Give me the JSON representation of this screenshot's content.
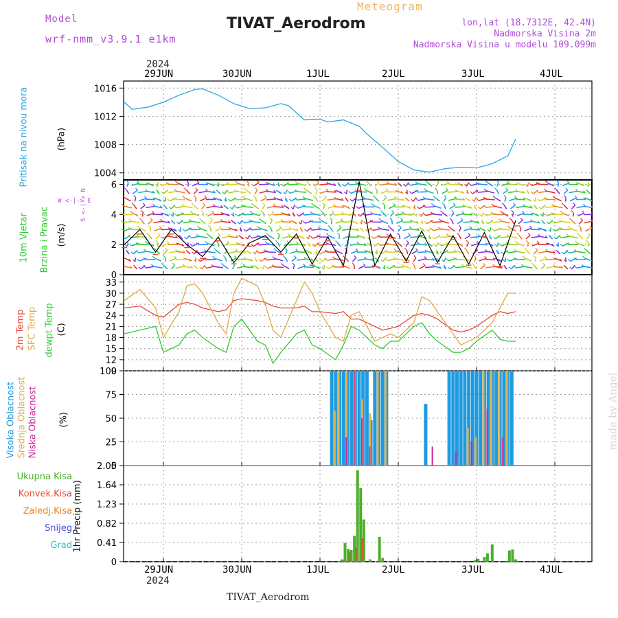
{
  "header": {
    "model_label": "Model",
    "model_name": "wrf-nmm_v3.9.1 e1km",
    "title": "TIVAT_Aerodrom",
    "meteogram": "Meteogram",
    "lonlat": "lon,lat (18.7312E, 42.4N)",
    "elevation": "Nadmorska Visina 2m",
    "model_elevation": "Nadmorska Visina u modelu 109.099m"
  },
  "footer": {
    "station": "TIVAT_Aerodrom",
    "made_by": "made by Angel"
  },
  "axis": {
    "year_top": "2024",
    "year_bottom": "2024",
    "date_labels": [
      "29JUN",
      "30JUN",
      "1JUL",
      "2JUL",
      "3JUL",
      "4JUL"
    ]
  },
  "panels": {
    "pressure": {
      "label": "Pritisak na nivou mora",
      "unit": "(hPa)"
    },
    "wind": {
      "label1": "10m Vjetar",
      "label2": "Brzina i Pravac",
      "unit": "(m/s)",
      "compass": "W <-|-> E",
      "compass_ns": "S <-|-> N"
    },
    "temp": {
      "label1": "2m Temp",
      "label2": "SFC Temp",
      "label3": "dewpt Temp",
      "unit": "(C)"
    },
    "cloud": {
      "label1": "Visoka Oblacnost",
      "label2": "Srednja Oblacnost",
      "label3": "Niska Oblacnost",
      "unit": "(%)"
    },
    "precip": {
      "unit": "1hr Precip (mm)",
      "legend": [
        "Ukupna Kisa",
        "Konvek.Kisa",
        "Zaledj.Kisa",
        "Snijeg",
        "Grad"
      ]
    }
  },
  "colors": {
    "pressure": "#2aa6e0",
    "temp2m": "#e84a3a",
    "sfc": "#e0a840",
    "dewpt": "#2ecc2e",
    "high_cloud": "#1e9be0",
    "mid_cloud": "#e0b050",
    "low_cloud": "#d0229a",
    "total_rain": "#4caf2a",
    "conv_rain": "#e84a3a",
    "frz_rain": "#f08020",
    "snow": "#4a4ae0",
    "hail": "#30c0c0",
    "purple": "#b04ad8",
    "grid": "#999999"
  },
  "chart_data": [
    {
      "type": "line",
      "title": "Pritisak na nivou mora",
      "ylabel": "(hPa)",
      "ylim": [
        1003,
        1017
      ],
      "yticks": [
        1004,
        1008,
        1012,
        1016
      ],
      "x": [
        -0.5,
        -0.4,
        -0.2,
        0,
        0.2,
        0.4,
        0.5,
        0.7,
        0.9,
        1.1,
        1.3,
        1.5,
        1.6,
        1.8,
        2.0,
        2.1,
        2.3,
        2.5,
        2.6,
        2.8,
        3.0,
        3.2,
        3.4,
        3.6,
        3.8,
        4.0,
        4.2,
        4.4,
        4.5
      ],
      "series": [
        {
          "values": [
            1014,
            1013,
            1013.3,
            1014,
            1015,
            1015.8,
            1015.9,
            1015,
            1013.8,
            1013.1,
            1013.2,
            1013.8,
            1013.5,
            1011.5,
            1011.6,
            1011.2,
            1011.5,
            1010.6,
            1009.5,
            1007.6,
            1005.6,
            1004.4,
            1004.1,
            1004.6,
            1004.8,
            1004.7,
            1005.3,
            1006.4,
            1008.8
          ]
        }
      ]
    },
    {
      "type": "line",
      "title": "10m Vjetar Brzina i Pravac",
      "ylabel": "(m/s)",
      "ylim": [
        0,
        6.3
      ],
      "yticks": [
        0,
        2,
        4,
        6
      ],
      "x": [
        -0.5,
        -0.3,
        -0.1,
        0.1,
        0.3,
        0.5,
        0.7,
        0.9,
        1.1,
        1.3,
        1.5,
        1.7,
        1.9,
        2.1,
        2.3,
        2.5,
        2.7,
        2.9,
        3.1,
        3.3,
        3.5,
        3.7,
        3.9,
        4.1,
        4.3,
        4.5
      ],
      "series": [
        {
          "name": "speed",
          "values": [
            2.0,
            3.0,
            1.5,
            3.0,
            2.0,
            1.2,
            2.5,
            0.8,
            2.1,
            2.6,
            1.5,
            2.7,
            0.7,
            2.5,
            0.6,
            6.2,
            0.6,
            2.7,
            0.9,
            2.9,
            0.8,
            2.6,
            0.7,
            2.8,
            0.6,
            3.6
          ]
        }
      ]
    },
    {
      "type": "line",
      "title": "Temperatura",
      "ylabel": "(C)",
      "ylim": [
        9,
        35
      ],
      "yticks": [
        9,
        12,
        15,
        18,
        21,
        24,
        27,
        30,
        33
      ],
      "x": [
        -0.5,
        -0.3,
        -0.1,
        0.0,
        0.2,
        0.3,
        0.4,
        0.5,
        0.7,
        0.8,
        0.9,
        1.0,
        1.2,
        1.3,
        1.4,
        1.5,
        1.7,
        1.8,
        1.9,
        2.0,
        2.2,
        2.3,
        2.4,
        2.5,
        2.7,
        2.8,
        2.9,
        3.0,
        3.2,
        3.3,
        3.4,
        3.5,
        3.7,
        3.8,
        3.9,
        4.0,
        4.2,
        4.3,
        4.4,
        4.5
      ],
      "series": [
        {
          "name": "2m Temp",
          "values": [
            26,
            26.5,
            24,
            23.5,
            27,
            27.5,
            27,
            26,
            25,
            25.5,
            28,
            28.5,
            28,
            27.5,
            26.5,
            26,
            26,
            26.5,
            25,
            25,
            24.5,
            25,
            23,
            23,
            21,
            20,
            20.5,
            21,
            24,
            24.5,
            24,
            23,
            20,
            19.5,
            20,
            21,
            24,
            25,
            24.5,
            25
          ]
        },
        {
          "name": "SFC Temp",
          "values": [
            28,
            31,
            26,
            18,
            25,
            32,
            32.5,
            30,
            22,
            19,
            30,
            34,
            32,
            27,
            20,
            18,
            28,
            33,
            30,
            25,
            18,
            17,
            24,
            25,
            17,
            18,
            19,
            18,
            22,
            29,
            28,
            25,
            19,
            16,
            17,
            18,
            22,
            26,
            30,
            30
          ]
        },
        {
          "name": "dewpt Temp",
          "values": [
            19,
            20,
            21,
            14,
            16,
            19,
            20,
            18,
            15,
            14,
            21,
            23,
            17,
            16,
            11,
            14,
            19,
            20,
            16,
            15,
            12,
            16,
            21,
            20,
            16,
            15,
            17,
            17,
            21,
            22,
            19,
            17,
            14,
            14,
            15,
            17,
            20,
            17.5,
            17,
            17
          ]
        }
      ]
    },
    {
      "type": "bar",
      "title": "Oblacnost",
      "ylabel": "(%)",
      "ylim": [
        0,
        100
      ],
      "yticks": [
        0,
        25,
        50,
        75,
        100
      ],
      "series": [
        {
          "name": "Visoka Oblacnost",
          "x": [
            2.15,
            2.2,
            2.25,
            2.3,
            2.35,
            2.4,
            2.45,
            2.5,
            2.55,
            2.6,
            2.65,
            2.7,
            2.75,
            2.8,
            2.85,
            3.35,
            3.65,
            3.7,
            3.75,
            3.8,
            3.85,
            3.9,
            3.95,
            4.0,
            4.05,
            4.1,
            4.15,
            4.2,
            4.25,
            4.3,
            4.35,
            4.4,
            4.45
          ],
          "values": [
            100,
            100,
            100,
            100,
            100,
            100,
            100,
            100,
            100,
            100,
            48,
            100,
            100,
            100,
            100,
            65,
            100,
            100,
            100,
            100,
            100,
            100,
            100,
            100,
            100,
            100,
            100,
            100,
            100,
            100,
            100,
            100,
            100
          ]
        },
        {
          "name": "Srednja Oblacnost",
          "x": [
            2.17,
            2.22,
            2.32,
            2.42,
            2.52,
            2.62,
            2.72,
            2.82,
            3.87,
            3.97,
            4.07,
            4.17,
            4.27,
            4.37
          ],
          "values": [
            58,
            100,
            100,
            100,
            70,
            55,
            100,
            100,
            40,
            30,
            100,
            100,
            100,
            100
          ]
        },
        {
          "name": "Niska Oblacnost",
          "x": [
            2.3,
            2.4,
            2.5,
            2.6,
            3.4,
            3.7,
            3.9,
            4.1,
            4.3
          ],
          "values": [
            30,
            100,
            50,
            20,
            20,
            15,
            25,
            60,
            30
          ]
        }
      ]
    },
    {
      "type": "bar",
      "title": "1hr Precip",
      "ylabel": "1hr Precip (mm)",
      "ylim": [
        0,
        2.05
      ],
      "yticks": [
        0,
        0.41,
        0.82,
        1.23,
        1.64,
        2.05
      ],
      "series": [
        {
          "name": "Ukupna Kisa",
          "x": [
            2.28,
            2.32,
            2.36,
            2.4,
            2.44,
            2.48,
            2.52,
            2.56,
            2.64,
            2.76,
            2.8,
            3.98,
            4.02,
            4.1,
            4.14,
            4.2,
            4.42,
            4.46,
            4.5
          ],
          "values": [
            0.05,
            0.4,
            0.27,
            0.25,
            0.55,
            1.95,
            1.57,
            0.9,
            0.05,
            0.53,
            0.08,
            0.03,
            0.06,
            0.1,
            0.18,
            0.37,
            0.24,
            0.26,
            0.05
          ]
        },
        {
          "name": "Konvek.Kisa",
          "x": [
            2.3,
            2.38,
            2.46,
            2.54
          ],
          "values": [
            0.03,
            0.2,
            0.3,
            0.5
          ]
        }
      ]
    }
  ]
}
